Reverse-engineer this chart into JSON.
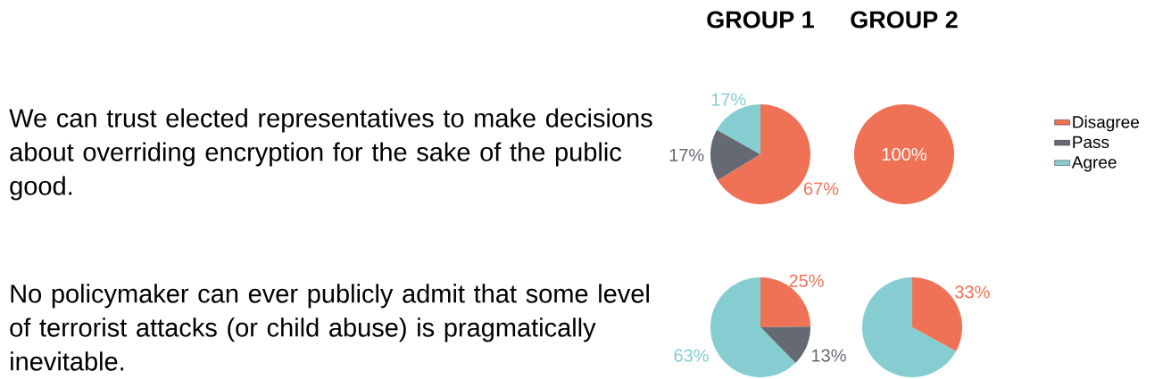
{
  "chart_data": [
    {
      "type": "pie",
      "title": "GROUP 1",
      "annotations": [
        "We can trust elected representatives to make decisions about overriding encryption for the sake of the public good."
      ],
      "categories": [
        null,
        null,
        null
      ],
      "values": [
        67,
        17,
        17
      ],
      "value_labels": [
        "67%",
        "17%",
        "17%"
      ],
      "colors": [
        "#ef7257",
        "#656a72",
        "#86cdd1"
      ]
    },
    {
      "type": "pie",
      "title": "GROUP 2",
      "categories": [
        "Disagree",
        "Pass",
        "Agree"
      ],
      "values": [
        100,
        0,
        0
      ],
      "value_labels": [
        "100%",
        null,
        null
      ],
      "colors": [
        "#ef7257",
        "#656a72",
        "#86cdd1"
      ],
      "legend": "right"
    },
    {
      "type": "pie",
      "annotations": [
        "No policymaker can ever publicly admit that some level of terrorist attacks (or child abuse) is pragmatically inevitable."
      ],
      "categories": [
        null,
        null,
        null
      ],
      "values": [
        25,
        13,
        63
      ],
      "value_labels": [
        "25%",
        "13%",
        "63%"
      ],
      "colors": [
        "#ef7257",
        "#656a72",
        "#86cdd1"
      ]
    },
    {
      "type": "pie",
      "categories": [
        null,
        null,
        null
      ],
      "values": [
        33,
        0,
        67
      ],
      "value_labels": [
        "33%",
        null,
        null
      ],
      "colors": [
        "#ef7257",
        "#656a72",
        "#86cdd1"
      ]
    }
  ]
}
